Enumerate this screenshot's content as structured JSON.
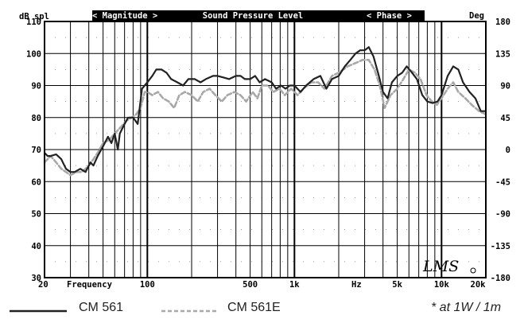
{
  "chart_data": {
    "type": "line",
    "title": "Sound Pressure Level",
    "header": {
      "left_unit": "dB spl",
      "magnitude_label": "< Magnitude >",
      "phase_label": "< Phase >",
      "right_unit": "Deg"
    },
    "xlabel": "Frequency",
    "xlabel_hz": "Hz",
    "x_scale": "log",
    "xlim": [
      20,
      20000
    ],
    "x_ticks": [
      {
        "value": 20,
        "label": "20"
      },
      {
        "value": 100,
        "label": "100"
      },
      {
        "value": 500,
        "label": "500"
      },
      {
        "value": 1000,
        "label": "1k"
      },
      {
        "value": 5000,
        "label": "5k"
      },
      {
        "value": 10000,
        "label": "10k"
      },
      {
        "value": 20000,
        "label": "20k"
      }
    ],
    "ylim": [
      30,
      110
    ],
    "y_ticks": [
      "110",
      "100",
      "90",
      "80",
      "70",
      "60",
      "50",
      "40",
      "30"
    ],
    "y2lim": [
      -180,
      180
    ],
    "y2_ticks": [
      "180",
      "135",
      "90",
      "45",
      "0",
      "-45",
      "-90",
      "-135",
      "-180"
    ],
    "series": [
      {
        "name": "CM 561",
        "style": "solid",
        "color": "#222222",
        "points": [
          [
            20,
            69
          ],
          [
            21,
            68
          ],
          [
            22,
            68
          ],
          [
            24,
            68.5
          ],
          [
            26,
            67
          ],
          [
            28,
            64
          ],
          [
            30,
            63
          ],
          [
            32,
            63
          ],
          [
            35,
            64
          ],
          [
            38,
            63
          ],
          [
            41,
            66
          ],
          [
            43,
            65
          ],
          [
            46,
            68
          ],
          [
            50,
            71
          ],
          [
            54,
            74
          ],
          [
            57,
            72
          ],
          [
            60,
            75
          ],
          [
            63,
            70
          ],
          [
            65,
            75
          ],
          [
            70,
            78
          ],
          [
            74,
            80
          ],
          [
            80,
            80
          ],
          [
            86,
            78
          ],
          [
            92,
            89
          ],
          [
            100,
            91
          ],
          [
            108,
            93
          ],
          [
            115,
            95
          ],
          [
            125,
            95
          ],
          [
            135,
            94
          ],
          [
            145,
            92
          ],
          [
            160,
            91
          ],
          [
            175,
            90
          ],
          [
            190,
            92
          ],
          [
            210,
            92
          ],
          [
            230,
            91
          ],
          [
            250,
            92
          ],
          [
            280,
            93
          ],
          [
            300,
            93
          ],
          [
            330,
            92.5
          ],
          [
            360,
            92
          ],
          [
            400,
            93
          ],
          [
            430,
            93
          ],
          [
            460,
            92
          ],
          [
            500,
            92
          ],
          [
            540,
            93
          ],
          [
            580,
            91
          ],
          [
            630,
            92
          ],
          [
            700,
            91
          ],
          [
            750,
            89
          ],
          [
            810,
            90
          ],
          [
            870,
            89
          ],
          [
            930,
            90
          ],
          [
            1000,
            90
          ],
          [
            1100,
            88
          ],
          [
            1200,
            90
          ],
          [
            1350,
            92
          ],
          [
            1500,
            93
          ],
          [
            1650,
            89
          ],
          [
            1800,
            92
          ],
          [
            2000,
            93
          ],
          [
            2200,
            96
          ],
          [
            2400,
            98
          ],
          [
            2600,
            100
          ],
          [
            2800,
            101
          ],
          [
            3000,
            101
          ],
          [
            3200,
            102
          ],
          [
            3450,
            99
          ],
          [
            3700,
            94
          ],
          [
            4000,
            88
          ],
          [
            4300,
            86
          ],
          [
            4600,
            91
          ],
          [
            5000,
            93
          ],
          [
            5400,
            94
          ],
          [
            5800,
            96
          ],
          [
            6300,
            94
          ],
          [
            6800,
            92
          ],
          [
            7400,
            87
          ],
          [
            8000,
            85
          ],
          [
            8700,
            84.5
          ],
          [
            9400,
            85
          ],
          [
            10000,
            87
          ],
          [
            11000,
            93
          ],
          [
            12000,
            96
          ],
          [
            13000,
            95
          ],
          [
            14000,
            91
          ],
          [
            15500,
            88
          ],
          [
            17000,
            86
          ],
          [
            18500,
            82
          ],
          [
            20000,
            82
          ]
        ]
      },
      {
        "name": "CM 561E",
        "style": "dashed",
        "color": "#a8a8a8",
        "points": [
          [
            20,
            66
          ],
          [
            22,
            68
          ],
          [
            24,
            66
          ],
          [
            26,
            64
          ],
          [
            28,
            63
          ],
          [
            30,
            62
          ],
          [
            33,
            63
          ],
          [
            36,
            63
          ],
          [
            40,
            65
          ],
          [
            43,
            67
          ],
          [
            46,
            69
          ],
          [
            50,
            72
          ],
          [
            55,
            73
          ],
          [
            60,
            75
          ],
          [
            66,
            77
          ],
          [
            72,
            79
          ],
          [
            78,
            80
          ],
          [
            84,
            81
          ],
          [
            90,
            83
          ],
          [
            96,
            88
          ],
          [
            100,
            88
          ],
          [
            108,
            87
          ],
          [
            118,
            88
          ],
          [
            128,
            86
          ],
          [
            140,
            85
          ],
          [
            152,
            83
          ],
          [
            165,
            87
          ],
          [
            180,
            88
          ],
          [
            200,
            87
          ],
          [
            220,
            85
          ],
          [
            240,
            88
          ],
          [
            265,
            89
          ],
          [
            290,
            87
          ],
          [
            320,
            85
          ],
          [
            350,
            87
          ],
          [
            390,
            88
          ],
          [
            430,
            87
          ],
          [
            470,
            85
          ],
          [
            520,
            88
          ],
          [
            560,
            86
          ],
          [
            600,
            90
          ],
          [
            660,
            90
          ],
          [
            720,
            88
          ],
          [
            790,
            89
          ],
          [
            860,
            87
          ],
          [
            950,
            89
          ],
          [
            1050,
            87
          ],
          [
            1150,
            89
          ],
          [
            1300,
            91
          ],
          [
            1450,
            91
          ],
          [
            1600,
            89
          ],
          [
            1800,
            93
          ],
          [
            2000,
            94
          ],
          [
            2300,
            96
          ],
          [
            2600,
            97
          ],
          [
            2900,
            98
          ],
          [
            3200,
            98
          ],
          [
            3500,
            95
          ],
          [
            3800,
            90
          ],
          [
            4100,
            83
          ],
          [
            4500,
            87
          ],
          [
            5000,
            89
          ],
          [
            5500,
            92
          ],
          [
            6000,
            95
          ],
          [
            6600,
            94
          ],
          [
            7200,
            92
          ],
          [
            7900,
            87
          ],
          [
            8600,
            85
          ],
          [
            9300,
            84
          ],
          [
            10000,
            86
          ],
          [
            11000,
            89
          ],
          [
            12000,
            91
          ],
          [
            13000,
            88
          ],
          [
            14500,
            86
          ],
          [
            16000,
            84
          ],
          [
            18000,
            82
          ],
          [
            20000,
            81
          ]
        ]
      }
    ],
    "legend": [
      {
        "name": "CM 561",
        "style": "solid"
      },
      {
        "name": "CM 561E",
        "style": "dashed"
      }
    ],
    "annotation": "* at 1W / 1m",
    "logo_text": "LMS",
    "grid": true
  }
}
